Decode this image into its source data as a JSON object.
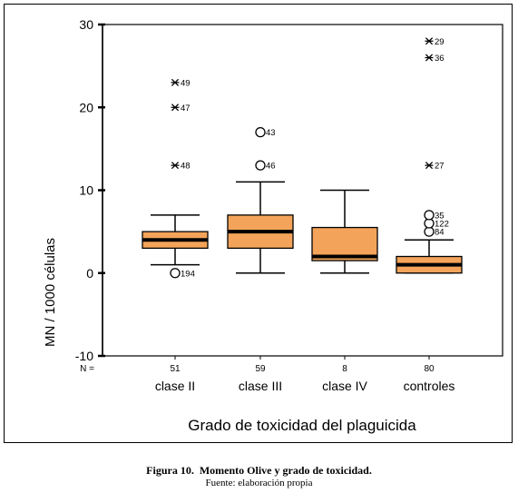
{
  "chart_data": {
    "type": "boxplot",
    "xlabel": "Grado de toxicidad del plaguicida",
    "ylabel": "MN / 1000 células",
    "ylim": [
      -10,
      30
    ],
    "yticks": [
      -10,
      0,
      10,
      20,
      30
    ],
    "n_label": "N =",
    "categories": [
      "clase II",
      "clase III",
      "clase IV",
      "controles"
    ],
    "n": [
      "51",
      "59",
      "8",
      "80"
    ],
    "boxes": [
      {
        "min": 1,
        "q1": 3,
        "median": 4,
        "q3": 5,
        "max": 7
      },
      {
        "min": 0,
        "q1": 3,
        "median": 5,
        "q3": 7,
        "max": 11
      },
      {
        "min": 0,
        "q1": 1.5,
        "median": 2,
        "q3": 5.5,
        "max": 10
      },
      {
        "min": 0,
        "q1": 0,
        "median": 1,
        "q3": 2,
        "max": 4
      }
    ],
    "outliers": [
      {
        "group": 0,
        "y": 0,
        "kind": "circle",
        "label": "194"
      },
      {
        "group": 0,
        "y": 13,
        "kind": "star",
        "label": "48"
      },
      {
        "group": 0,
        "y": 20,
        "kind": "star",
        "label": "47"
      },
      {
        "group": 0,
        "y": 23,
        "kind": "star",
        "label": "49"
      },
      {
        "group": 1,
        "y": 13,
        "kind": "circle",
        "label": "46"
      },
      {
        "group": 1,
        "y": 17,
        "kind": "circle",
        "label": "43"
      },
      {
        "group": 3,
        "y": 5,
        "kind": "circle",
        "label": "84"
      },
      {
        "group": 3,
        "y": 6,
        "kind": "circle",
        "label": "122"
      },
      {
        "group": 3,
        "y": 7,
        "kind": "circle",
        "label": "35"
      },
      {
        "group": 3,
        "y": 13,
        "kind": "star",
        "label": "27"
      },
      {
        "group": 3,
        "y": 26,
        "kind": "star",
        "label": "36"
      },
      {
        "group": 3,
        "y": 28,
        "kind": "star",
        "label": "29"
      }
    ],
    "box_color": "#F4A45A",
    "grid": false
  },
  "caption": {
    "number": "Figura 10.",
    "title": "Momento Olive y grado de toxicidad.",
    "source": "Fuente: elaboración propia"
  }
}
